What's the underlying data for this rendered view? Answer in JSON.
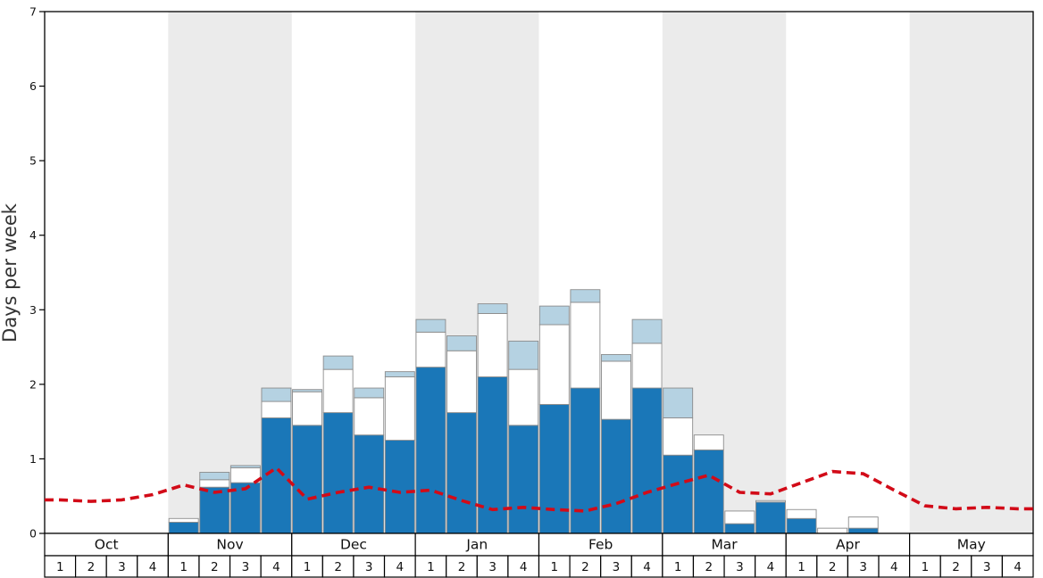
{
  "chart_data": {
    "type": "bar",
    "stacked": true,
    "title": "",
    "xlabel": "",
    "ylabel": "Days per week",
    "ylim": [
      0,
      7
    ],
    "yticks": [
      0,
      1,
      2,
      3,
      4,
      5,
      6,
      7
    ],
    "months": [
      "Oct",
      "Nov",
      "Dec",
      "Jan",
      "Feb",
      "Mar",
      "Apr",
      "May"
    ],
    "weeks_per_month": 4,
    "week_labels": [
      "1",
      "2",
      "3",
      "4"
    ],
    "shaded_months": [
      "Nov",
      "Jan",
      "Mar",
      "May"
    ],
    "series": [
      {
        "name": "dark-blue-days",
        "color": "#1a77b8",
        "values": [
          0,
          0,
          0,
          0,
          0.15,
          0.62,
          0.68,
          1.55,
          1.45,
          1.62,
          1.32,
          1.25,
          2.23,
          1.62,
          2.1,
          1.45,
          1.73,
          1.95,
          1.53,
          1.95,
          1.05,
          1.12,
          0.13,
          0.42,
          0.2,
          0.0,
          0.07,
          0,
          0,
          0,
          0,
          0
        ]
      },
      {
        "name": "white-days",
        "color": "#ffffff",
        "values": [
          0,
          0,
          0,
          0,
          0.05,
          0.1,
          0.2,
          0.22,
          0.45,
          0.58,
          0.5,
          0.85,
          0.47,
          0.83,
          0.85,
          0.75,
          1.07,
          1.15,
          0.78,
          0.6,
          0.5,
          0.2,
          0.17,
          0.02,
          0.12,
          0.07,
          0.15,
          0,
          0,
          0,
          0,
          0
        ]
      },
      {
        "name": "light-blue-days",
        "color": "#b5d2e2",
        "values": [
          0,
          0,
          0,
          0,
          0,
          0.1,
          0.03,
          0.18,
          0.03,
          0.18,
          0.13,
          0.07,
          0.17,
          0.2,
          0.13,
          0.38,
          0.25,
          0.17,
          0.09,
          0.32,
          0.4,
          0,
          0,
          0,
          0,
          0,
          0,
          0,
          0,
          0,
          0,
          0
        ]
      }
    ],
    "line": {
      "name": "red-dashed-line",
      "color": "#d20b18",
      "dash": "10,6",
      "values": [
        0.45,
        0.43,
        0.45,
        0.52,
        0.65,
        0.55,
        0.6,
        0.88,
        0.46,
        0.55,
        0.62,
        0.55,
        0.58,
        0.44,
        0.32,
        0.35,
        0.32,
        0.3,
        0.4,
        0.55,
        0.67,
        0.78,
        0.55,
        0.53,
        0.68,
        0.83,
        0.8,
        0.58,
        0.37,
        0.33,
        0.35,
        0.33
      ]
    },
    "legend": "off",
    "grid": "off"
  },
  "colors": {
    "band": "#ebebeb",
    "axis": "#000000",
    "bar_border": "#8c8c8c",
    "cell_border": "#000000"
  }
}
